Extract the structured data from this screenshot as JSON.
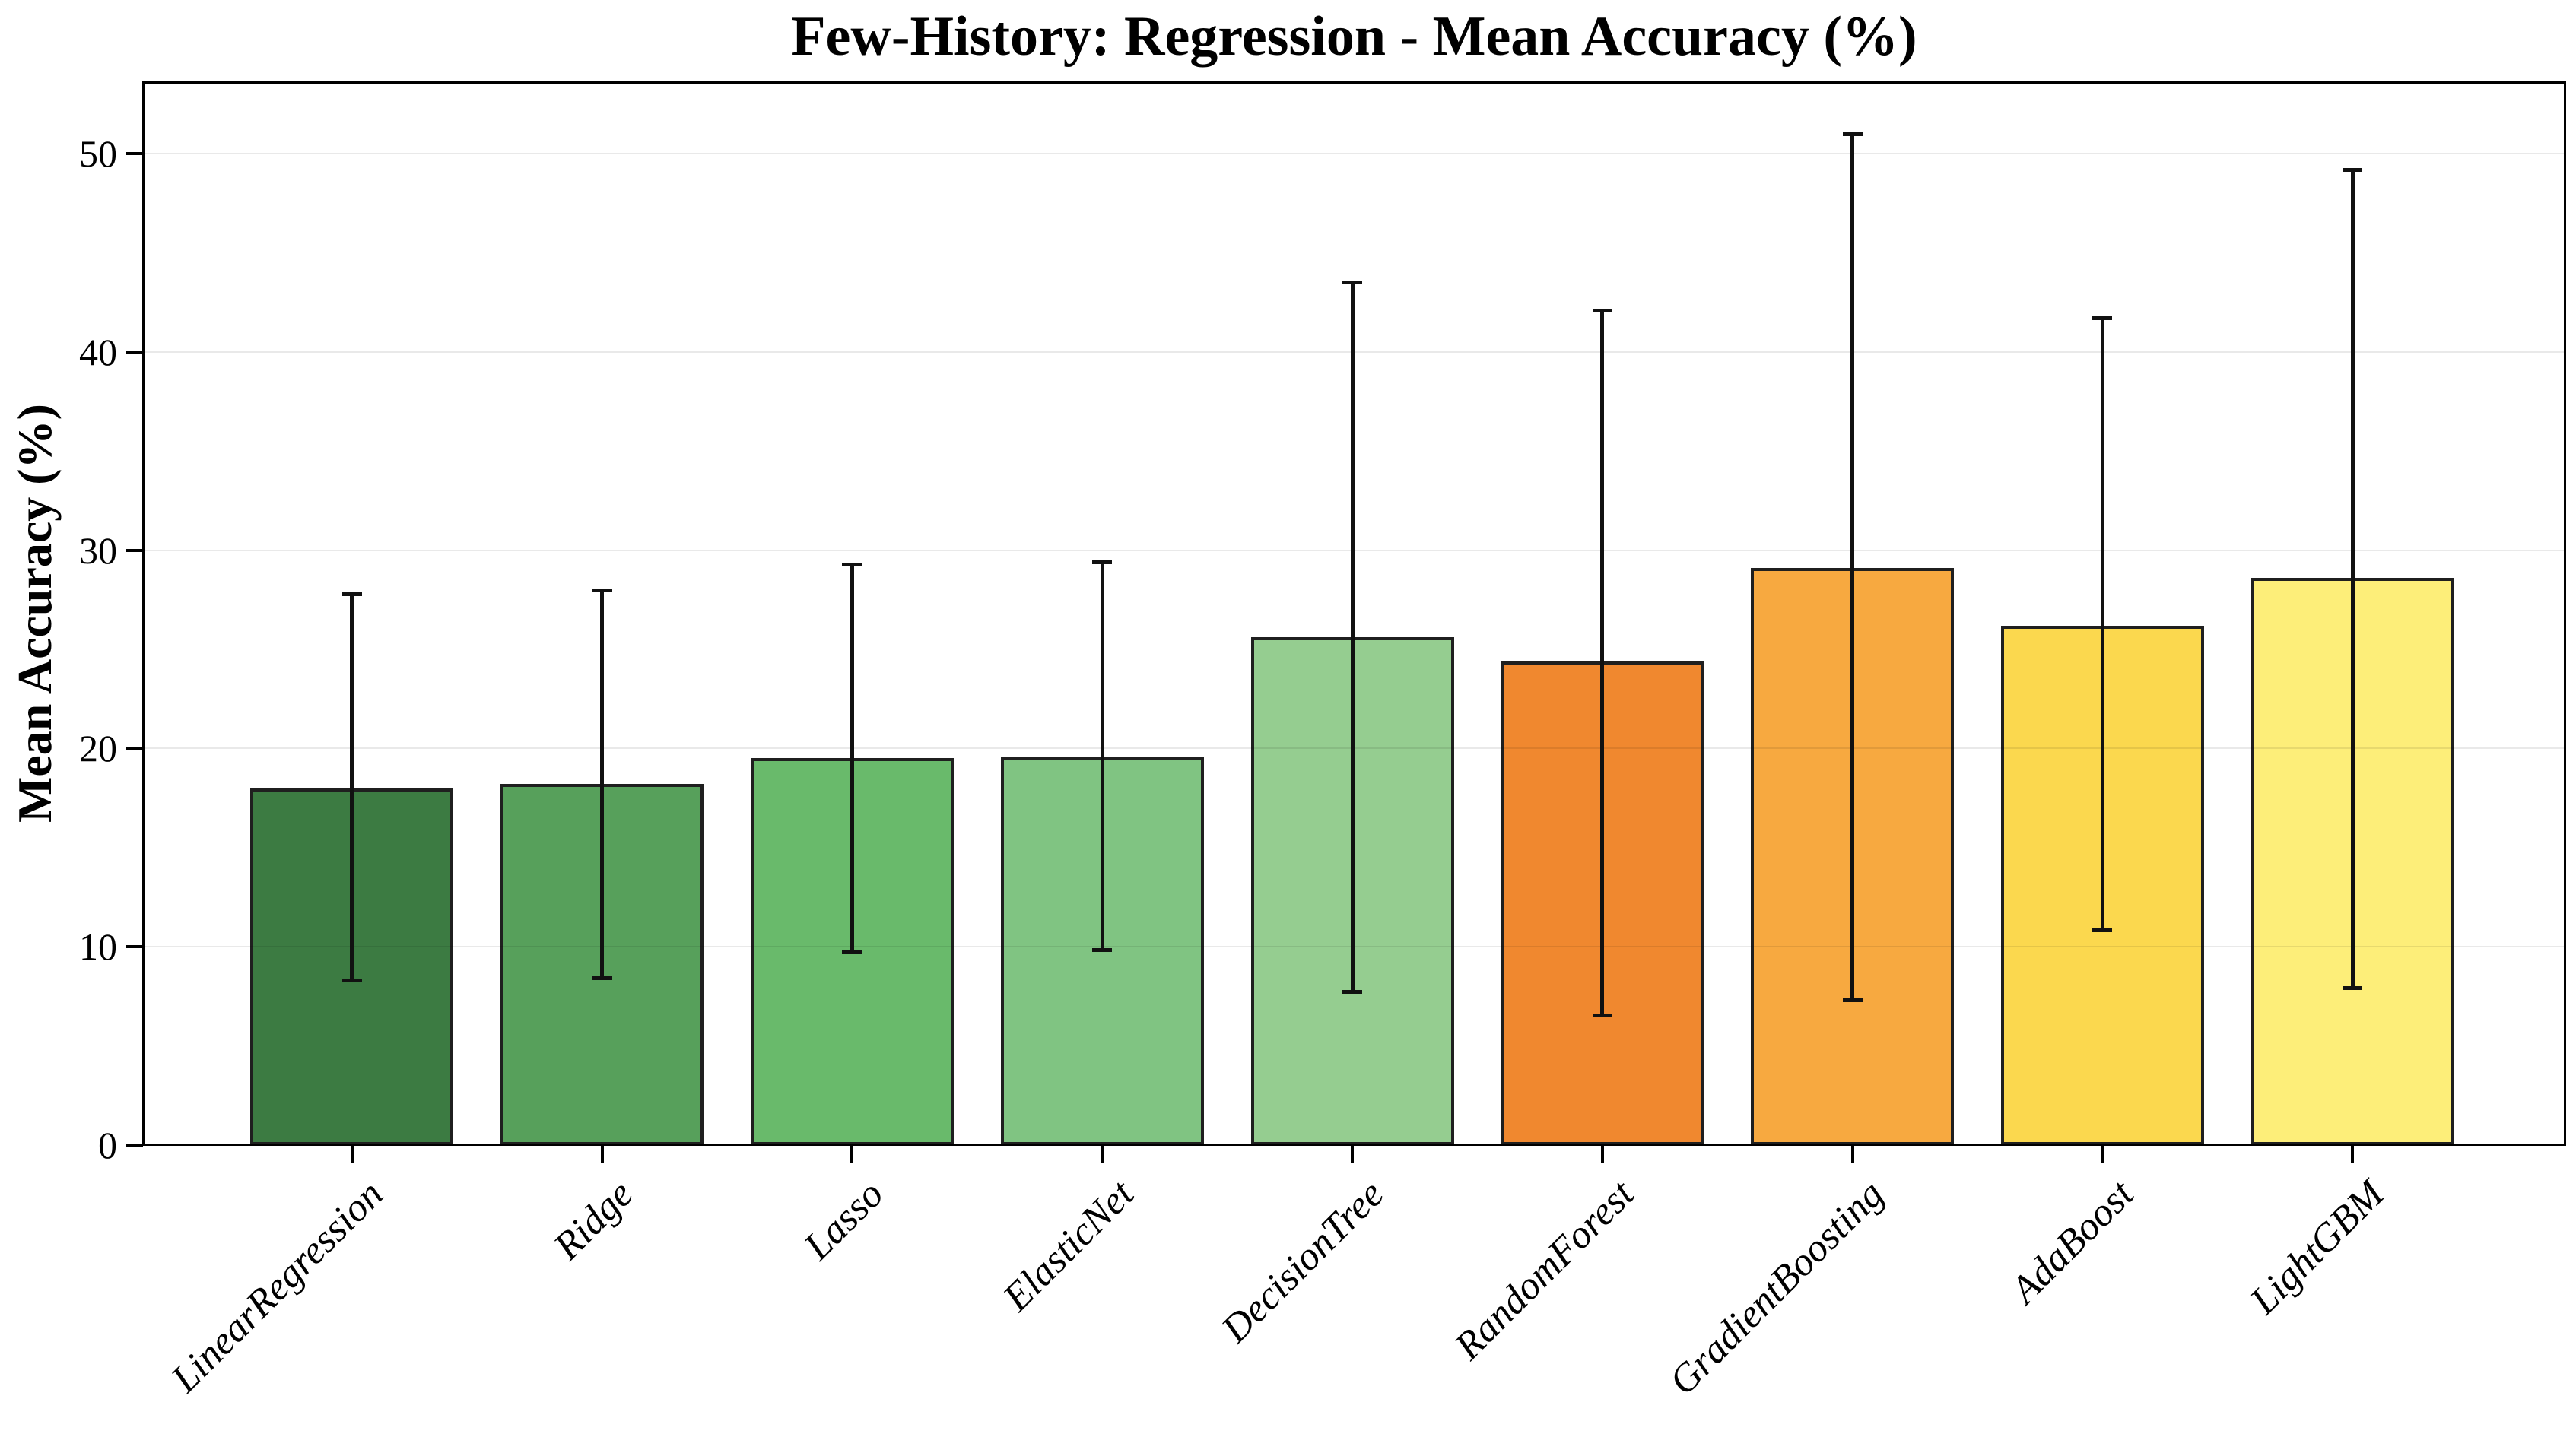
{
  "title": "Few-History: Regression - Mean Accuracy (%)",
  "chart_data": {
    "type": "bar",
    "title": "Few-History: Regression - Mean Accuracy (%)",
    "xlabel": "",
    "ylabel": "Mean Accuracy (%)",
    "ylim": [
      0,
      53.6
    ],
    "yticks": [
      0,
      10,
      20,
      30,
      40,
      50
    ],
    "grid": "horizontal-light",
    "legend": "none",
    "categories": [
      "LinearRegression",
      "Ridge",
      "Lasso",
      "ElasticNet",
      "DecisionTree",
      "RandomForest",
      "GradientBoosting",
      "AdaBoost",
      "LightGBM"
    ],
    "series": [
      {
        "name": "Mean Accuracy (%)",
        "values": [
          18.0,
          18.2,
          19.5,
          19.6,
          25.6,
          24.4,
          29.1,
          26.2,
          28.6
        ],
        "error_low": [
          8.3,
          8.4,
          9.7,
          9.8,
          7.7,
          6.5,
          7.3,
          10.8,
          7.9
        ],
        "error_high": [
          27.8,
          28.0,
          29.3,
          29.4,
          43.5,
          42.1,
          51.0,
          41.7,
          49.2
        ]
      }
    ],
    "bar_colors": [
      "#3c7b42",
      "#57a05b",
      "#69ba6b",
      "#80c482",
      "#95cd90",
      "#f0882f",
      "#f7a940",
      "#fbd84e",
      "#fdee79"
    ],
    "bar_edge_color": "#1f1f1f",
    "error_bar_color": "#111111"
  }
}
